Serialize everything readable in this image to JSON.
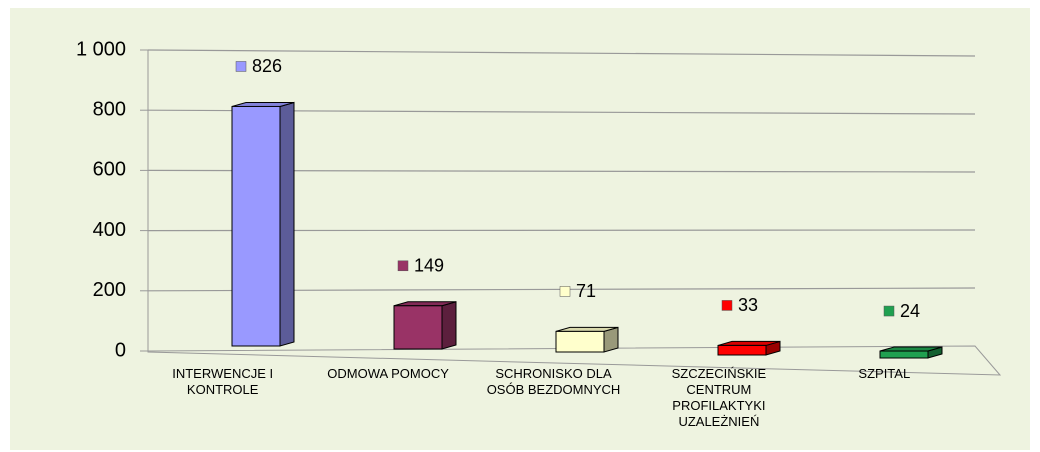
{
  "chart_data": {
    "type": "bar3d",
    "categories": [
      "INTERWENCJE I KONTROLE",
      "ODMOWA POMOCY",
      "SCHRONISKO DLA OSÓB BEZDOMNYCH",
      "SZCZECIŃSKIE CENTRUM PROFILAKTYKI UZALEŻNIEŃ",
      "SZPITAL"
    ],
    "values": [
      826,
      149,
      71,
      33,
      24
    ],
    "colors": [
      "#9999ff",
      "#993366",
      "#ffffcc",
      "#ff0000",
      "#1fa050"
    ],
    "ylim": [
      0,
      1000
    ],
    "yticks": [
      0,
      200,
      400,
      600,
      800,
      {
        "value": 1000,
        "label": "1 000"
      }
    ],
    "grid": true
  }
}
